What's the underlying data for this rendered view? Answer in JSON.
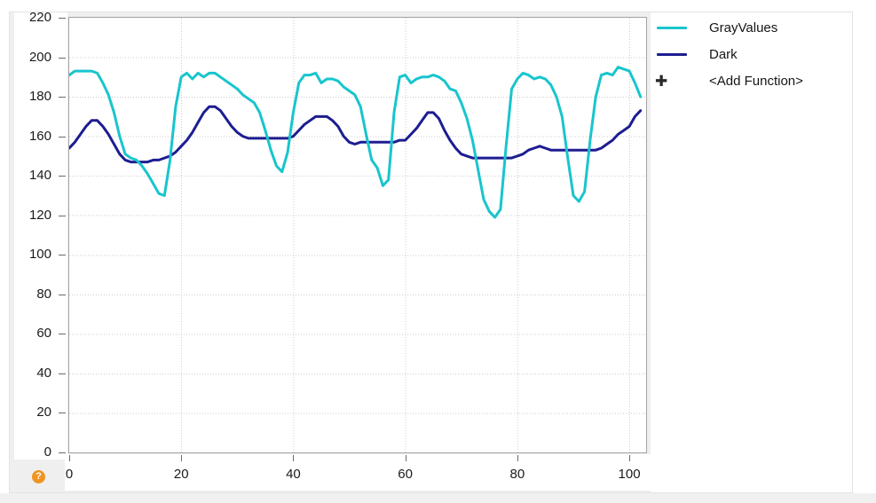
{
  "chart_data": {
    "type": "line",
    "title": "",
    "xlabel": "",
    "ylabel": "",
    "xlim": [
      0,
      103
    ],
    "ylim": [
      0,
      220
    ],
    "x_ticks": [
      0,
      20,
      40,
      60,
      80,
      100
    ],
    "y_ticks": [
      0,
      20,
      40,
      60,
      80,
      100,
      120,
      140,
      160,
      180,
      200,
      220
    ],
    "grid": "dotted",
    "legend_position": "right",
    "x_start": 0,
    "x_step": 1,
    "series": [
      {
        "name": "GrayValues",
        "color": "#18c5cd",
        "values": [
          191,
          193,
          193,
          193,
          193,
          192,
          187,
          181,
          172,
          160,
          151,
          149,
          148,
          145,
          141,
          136,
          131,
          130,
          148,
          175,
          190,
          192,
          189,
          192,
          190,
          192,
          192,
          190,
          188,
          186,
          184,
          181,
          179,
          177,
          172,
          163,
          153,
          145,
          142,
          152,
          172,
          187,
          191,
          191,
          192,
          187,
          189,
          189,
          188,
          185,
          183,
          181,
          175,
          161,
          148,
          144,
          135,
          138,
          172,
          190,
          191,
          187,
          189,
          190,
          190,
          191,
          190,
          188,
          184,
          183,
          177,
          169,
          158,
          143,
          128,
          122,
          119,
          123,
          155,
          184,
          189,
          192,
          191,
          189,
          190,
          189,
          186,
          180,
          170,
          149,
          130,
          127,
          132,
          158,
          180,
          191,
          192,
          191,
          195,
          194,
          193,
          187,
          180
        ]
      },
      {
        "name": "Dark",
        "color": "#1d1d91",
        "values": [
          154,
          157,
          161,
          165,
          168,
          168,
          165,
          161,
          156,
          151,
          148,
          147,
          147,
          147,
          147,
          148,
          148,
          149,
          150,
          152,
          155,
          158,
          162,
          167,
          172,
          175,
          175,
          173,
          169,
          165,
          162,
          160,
          159,
          159,
          159,
          159,
          159,
          159,
          159,
          159,
          160,
          163,
          166,
          168,
          170,
          170,
          170,
          168,
          165,
          160,
          157,
          156,
          157,
          157,
          157,
          157,
          157,
          157,
          157,
          158,
          158,
          161,
          164,
          168,
          172,
          172,
          169,
          163,
          158,
          154,
          151,
          150,
          149,
          149,
          149,
          149,
          149,
          149,
          149,
          149,
          150,
          151,
          153,
          154,
          155,
          154,
          153,
          153,
          153,
          153,
          153,
          153,
          153,
          153,
          153,
          154,
          156,
          158,
          161,
          163,
          165,
          170,
          173
        ]
      }
    ]
  },
  "legend": {
    "items": [
      {
        "label": "GrayValues",
        "swatch": "line",
        "color": "#18c5cd"
      },
      {
        "label": "Dark",
        "swatch": "line",
        "color": "#1d1d91"
      },
      {
        "label": "<Add Function>",
        "swatch": "plus",
        "color": "#2a2a2a"
      }
    ]
  },
  "help_button": {
    "symbol": "?",
    "color": "#f09421"
  }
}
